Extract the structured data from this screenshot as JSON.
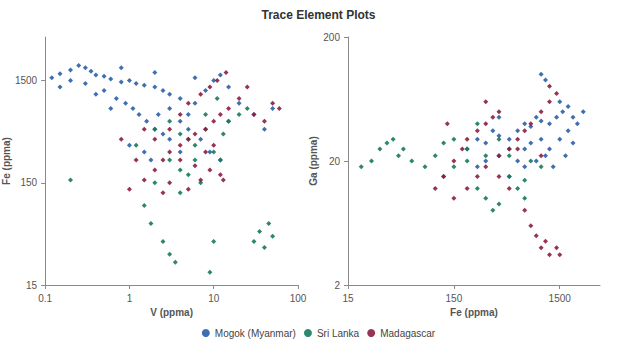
{
  "chart_data": [
    {
      "type": "scatter",
      "title": "Trace Element Plots",
      "x_label": "V (ppma)",
      "y_label": "Fe (ppma)",
      "log": true,
      "grid": false,
      "legend": "bottom",
      "marker": "diamond",
      "xlim": [
        0.1,
        100
      ],
      "xticks": [
        0.1,
        1,
        10,
        100
      ],
      "ylim": [
        15,
        4000
      ],
      "yticks": [
        15,
        150,
        1500
      ],
      "series": [
        {
          "name": "Mogok (Myanmar)",
          "color": "#2a5ea8",
          "x": [
            0.12,
            0.15,
            0.2,
            0.25,
            0.3,
            0.35,
            0.4,
            0.5,
            0.6,
            0.8,
            1,
            1.2,
            1.5,
            2,
            2.5,
            3,
            4,
            0.3,
            0.5,
            0.7,
            0.9,
            1.1,
            1.3,
            1.6,
            2,
            2.5,
            3,
            1,
            1.5,
            4,
            5,
            6,
            8,
            10,
            12,
            3,
            5,
            7,
            9,
            12,
            15,
            20,
            30,
            40,
            50,
            0.2,
            0.15,
            0.8,
            2,
            6,
            1.8,
            4,
            15,
            0.4,
            2.2,
            0.6
          ],
          "values": [
            1600,
            1750,
            1900,
            2100,
            2000,
            1850,
            1700,
            1650,
            1550,
            1450,
            1500,
            1400,
            1350,
            1300,
            1200,
            1100,
            1000,
            1400,
            1200,
            1000,
            900,
            800,
            700,
            600,
            500,
            450,
            400,
            350,
            300,
            600,
            700,
            900,
            1200,
            1500,
            1700,
            800,
            500,
            400,
            300,
            250,
            600,
            900,
            700,
            500,
            800,
            1500,
            1300,
            2000,
            1800,
            1600,
            250,
            300,
            1300,
            1100,
            700,
            800
          ]
        },
        {
          "name": "Sri Lanka",
          "color": "#167a5c",
          "x": [
            2,
            3,
            4,
            5,
            6,
            8,
            10,
            12,
            3,
            4,
            5,
            2,
            1.5,
            1.8,
            2.5,
            3,
            3.5,
            9,
            10,
            30,
            35,
            40,
            45,
            50,
            20,
            25,
            15,
            0.2,
            1.2,
            7,
            8,
            11,
            13,
            4,
            6
          ],
          "values": [
            500,
            600,
            450,
            400,
            350,
            500,
            300,
            250,
            250,
            200,
            180,
            150,
            90,
            60,
            40,
            30,
            25,
            20,
            40,
            40,
            50,
            35,
            60,
            45,
            700,
            800,
            600,
            160,
            350,
            150,
            700,
            1000,
            450,
            120,
            250
          ]
        },
        {
          "name": "Madagascar",
          "color": "#8c1d40",
          "x": [
            1,
            1.5,
            2,
            2.5,
            3,
            4,
            5,
            6,
            8,
            10,
            12,
            15,
            2,
            3,
            4,
            5,
            7,
            9,
            11,
            14,
            3,
            5,
            7,
            9,
            12,
            2.5,
            1.2,
            1.5,
            20,
            25,
            30,
            40,
            50,
            60,
            6,
            8,
            10,
            4,
            0.8,
            13
          ],
          "values": [
            130,
            160,
            200,
            250,
            300,
            350,
            400,
            450,
            500,
            600,
            700,
            800,
            400,
            500,
            700,
            900,
            1100,
            1300,
            1500,
            1800,
            150,
            130,
            160,
            200,
            180,
            120,
            250,
            500,
            1000,
            1300,
            700,
            600,
            900,
            800,
            220,
            300,
            350,
            250,
            400,
            160
          ]
        }
      ]
    },
    {
      "type": "scatter",
      "x_label": "Fe (ppma)",
      "y_label": "Ga (ppma)",
      "log": true,
      "grid": false,
      "legend": "bottom",
      "marker": "diamond",
      "xlim": [
        15,
        3600
      ],
      "xticks": [
        15,
        150,
        1500
      ],
      "ylim": [
        2,
        200
      ],
      "yticks": [
        2,
        20,
        200
      ],
      "series": [
        {
          "name": "Mogok (Myanmar)",
          "color": "#2a5ea8",
          "x": [
            200,
            250,
            300,
            350,
            400,
            500,
            600,
            700,
            800,
            900,
            1000,
            1200,
            1400,
            1600,
            1800,
            2000,
            2200,
            300,
            400,
            500,
            600,
            700,
            800,
            1000,
            1200,
            1500,
            1800,
            2000,
            500,
            700,
            900,
            1100,
            1300,
            1000,
            1100,
            1500,
            2500,
            400,
            250,
            1700
          ],
          "values": [
            25,
            30,
            28,
            35,
            32,
            30,
            35,
            40,
            38,
            45,
            42,
            40,
            45,
            50,
            55,
            45,
            40,
            20,
            22,
            25,
            20,
            25,
            28,
            30,
            25,
            30,
            35,
            28,
            15,
            18,
            20,
            22,
            18,
            100,
            90,
            60,
            50,
            45,
            18,
            22
          ]
        },
        {
          "name": "Sri Lanka",
          "color": "#167a5c",
          "x": [
            20,
            25,
            30,
            35,
            40,
            45,
            50,
            60,
            80,
            100,
            120,
            150,
            200,
            250,
            300,
            350,
            400,
            500,
            600,
            700,
            150,
            200,
            300,
            400,
            800,
            1000,
            250,
            120,
            700,
            500
          ],
          "values": [
            18,
            20,
            25,
            28,
            30,
            22,
            25,
            20,
            18,
            22,
            15,
            18,
            20,
            12,
            10,
            8,
            9,
            15,
            12,
            14,
            30,
            25,
            22,
            30,
            20,
            18,
            40,
            28,
            10,
            22
          ]
        },
        {
          "name": "Madagascar",
          "color": "#8c1d40",
          "x": [
            100,
            120,
            150,
            180,
            200,
            250,
            300,
            350,
            400,
            150,
            200,
            250,
            300,
            400,
            500,
            600,
            700,
            800,
            1000,
            1200,
            1400,
            800,
            900,
            1000,
            1100,
            1200,
            1400,
            1500,
            700,
            600,
            400,
            1000,
            1200,
            300,
            130,
            500
          ],
          "values": [
            12,
            15,
            20,
            25,
            30,
            35,
            40,
            45,
            50,
            10,
            12,
            15,
            18,
            22,
            25,
            30,
            35,
            40,
            50,
            60,
            70,
            6,
            5,
            4,
            4.5,
            3.5,
            4,
            3.5,
            8,
            25,
            15,
            22,
            80,
            60,
            40,
            12
          ]
        }
      ]
    }
  ]
}
